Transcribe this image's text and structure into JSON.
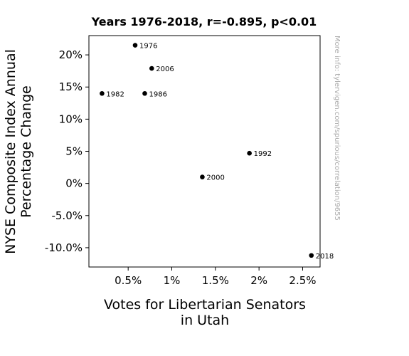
{
  "chart_data": {
    "type": "scatter",
    "title": "Years 1976-2018, r=-0.895, p<0.01",
    "xlabel": [
      "Votes for Libertarian Senators",
      "in Utah"
    ],
    "ylabel": [
      "NYSE Composite Index Annual",
      "Percentage Change"
    ],
    "side_note": "More info: tylervigen.com/spurious/correlation/9655",
    "xlim": [
      0.05,
      2.7
    ],
    "ylim": [
      -13,
      23
    ],
    "x_unit": "%",
    "y_unit": "%",
    "x_ticks": [
      {
        "value": 0.5,
        "label": "0.5%"
      },
      {
        "value": 1,
        "label": "1%"
      },
      {
        "value": 1.5,
        "label": "1.5%"
      },
      {
        "value": 2,
        "label": "2%"
      },
      {
        "value": 2.5,
        "label": "2.5%"
      }
    ],
    "y_ticks": [
      {
        "value": 20,
        "label": "20%"
      },
      {
        "value": 15,
        "label": "15%"
      },
      {
        "value": 10,
        "label": "10%"
      },
      {
        "value": 5,
        "label": "5%"
      },
      {
        "value": 0,
        "label": "0%"
      },
      {
        "value": -5,
        "label": "-5.0%"
      },
      {
        "value": -10,
        "label": "-10.0%"
      }
    ],
    "grid": false,
    "points": [
      {
        "label": "1976",
        "x": 0.58,
        "y": 21.5
      },
      {
        "label": "2006",
        "x": 0.77,
        "y": 17.9
      },
      {
        "label": "1982",
        "x": 0.2,
        "y": 14.0
      },
      {
        "label": "1986",
        "x": 0.69,
        "y": 14.0
      },
      {
        "label": "1992",
        "x": 1.89,
        "y": 4.7
      },
      {
        "label": "2000",
        "x": 1.35,
        "y": 1.0
      },
      {
        "label": "2018",
        "x": 2.6,
        "y": -11.2
      }
    ],
    "point_color": "#000000"
  }
}
